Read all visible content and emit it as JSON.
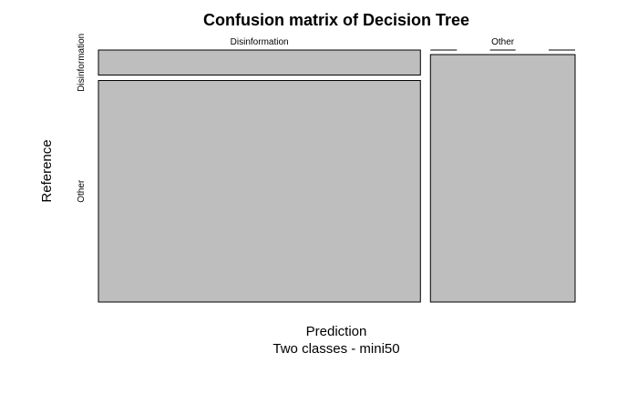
{
  "chart_data": {
    "type": "mosaic",
    "title": "Confusion matrix of Decision Tree",
    "xlabel": "Prediction",
    "xlabel_sub": "Two classes - mini50",
    "ylabel": "Reference",
    "x_categories": [
      "Disinformation",
      "Other"
    ],
    "y_categories": [
      "Disinformation",
      "Other"
    ],
    "x_label_style": [
      "plain",
      "underlined-gap"
    ],
    "cells": [
      {
        "prediction": "Disinformation",
        "reference": "Disinformation",
        "value": 0.07
      },
      {
        "prediction": "Disinformation",
        "reference": "Other",
        "value": 0.62
      },
      {
        "prediction": "Other",
        "reference": "Disinformation",
        "value": 0.0
      },
      {
        "prediction": "Other",
        "reference": "Other",
        "value": 0.31
      }
    ],
    "colors": {
      "tile_fill": "#bebebe",
      "tile_stroke": "#000000",
      "text": "#000000"
    }
  }
}
